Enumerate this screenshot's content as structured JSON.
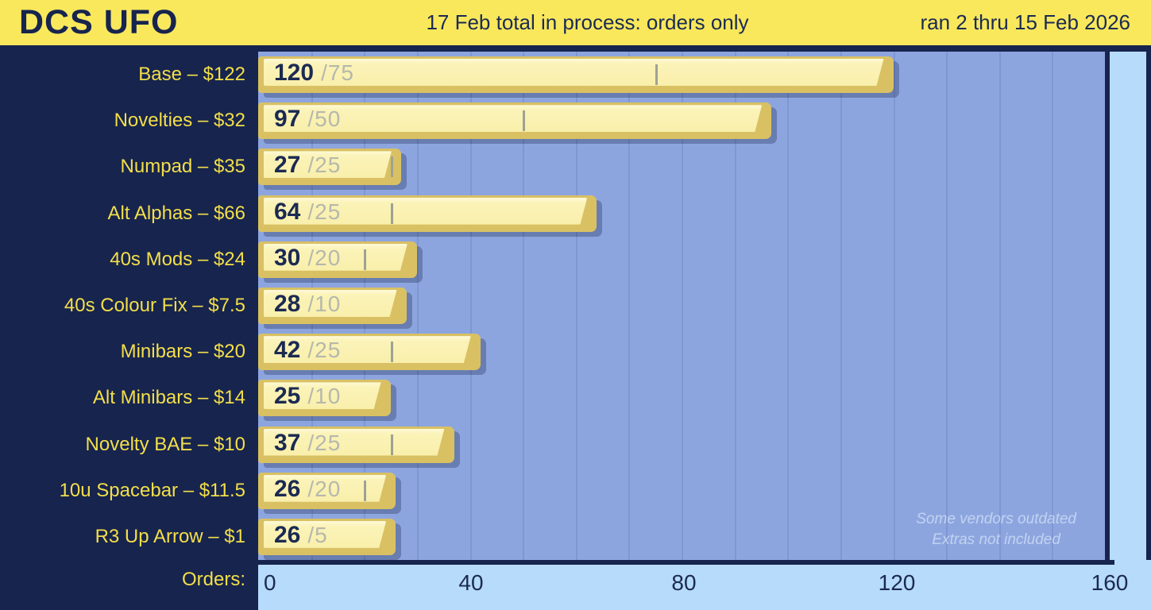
{
  "header": {
    "brand": "DCS UFO",
    "center": "17 Feb total in process: orders only",
    "right": "ran 2 thru 15 Feb 2026"
  },
  "sidebar": {
    "axis_row_label": "Orders:"
  },
  "annotation": {
    "line1": "Some vendors outdated",
    "line2": "Extras not included"
  },
  "colors": {
    "header_yellow": "#F9E85C",
    "navy": "#17244E",
    "label_yellow": "#F3DF49",
    "plot_background": "#8DA5DF",
    "gridline": "#7E96D3",
    "keycap_gold": "#D9C163",
    "keycap_face": "#FAF0AF",
    "bar_value_text": "#1B2A52",
    "moq_gray": "#B5B8AC",
    "moq_tick_gray": "#9EA194",
    "axis_strip_blue": "#B7DBFA",
    "annotation_text": "#D6E5F6"
  },
  "chart_data": {
    "type": "bar",
    "orientation": "horizontal",
    "title": "17 Feb total in process: orders only",
    "subtitle": "ran 2 thru 15 Feb 2026",
    "xlabel": "Orders",
    "xlim": [
      0,
      160
    ],
    "x_ticks": [
      0,
      40,
      80,
      120,
      160
    ],
    "gridline_step": 10,
    "grid": true,
    "legend_position": "none",
    "value_label_format": "orders /moq",
    "items": [
      {
        "label": "Base – $122",
        "orders": 120,
        "moq": 75
      },
      {
        "label": "Novelties – $32",
        "orders": 97,
        "moq": 50
      },
      {
        "label": "Numpad – $35",
        "orders": 27,
        "moq": 25
      },
      {
        "label": "Alt Alphas – $66",
        "orders": 64,
        "moq": 25
      },
      {
        "label": "40s Mods – $24",
        "orders": 30,
        "moq": 20
      },
      {
        "label": "40s Colour Fix – $7.5",
        "orders": 28,
        "moq": 10
      },
      {
        "label": "Minibars – $20",
        "orders": 42,
        "moq": 25
      },
      {
        "label": "Alt Minibars – $14",
        "orders": 25,
        "moq": 10
      },
      {
        "label": "Novelty BAE – $10",
        "orders": 37,
        "moq": 25
      },
      {
        "label": "10u Spacebar – $11.5",
        "orders": 26,
        "moq": 20
      },
      {
        "label": "R3 Up Arrow – $1",
        "orders": 26,
        "moq": 5
      }
    ]
  }
}
